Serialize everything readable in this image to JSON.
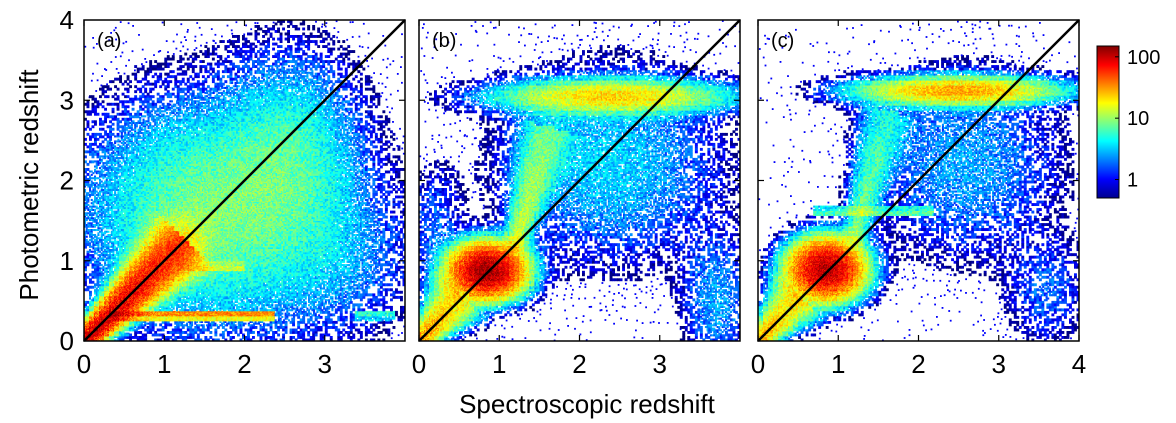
{
  "chart_data": {
    "type": "heatmap",
    "xlabel": "Spectroscopic redshift",
    "ylabel": "Photometric redshift",
    "xlim": [
      0,
      4
    ],
    "ylim": [
      0,
      4
    ],
    "colorbar": {
      "scale": "log",
      "range": [
        0.5,
        150
      ],
      "ticks": [
        {
          "value": 1,
          "label": "1"
        },
        {
          "value": 10,
          "label": "10"
        },
        {
          "value": 100,
          "label": "100"
        }
      ],
      "colormap": "jet"
    },
    "reference_line": {
      "from": [
        0,
        0
      ],
      "to": [
        4,
        4
      ]
    },
    "panels": [
      {
        "label": "(a)",
        "x_ticks": [
          "0",
          "1",
          "2",
          "3"
        ],
        "y_ticks": [
          "0",
          "1",
          "2",
          "3",
          "4"
        ],
        "dense_points": [
          [
            0.2,
            0.2
          ],
          [
            0.5,
            0.5
          ],
          [
            0.8,
            0.85
          ],
          [
            1.0,
            1.0
          ],
          [
            1.3,
            1.2
          ],
          [
            0.5,
            0.32
          ],
          [
            1.5,
            0.32
          ]
        ],
        "features": [
          {
            "type": "ridge",
            "from": [
              0.05,
              0.05
            ],
            "to": [
              1.2,
              1.2
            ],
            "peak_count": 120
          },
          {
            "type": "cloud",
            "center": [
              1.6,
              1.6
            ],
            "spread": [
              0.9,
              0.8
            ],
            "count": 10
          },
          {
            "type": "cloud",
            "center": [
              2.6,
              2.4
            ],
            "spread": [
              0.5,
              0.7
            ],
            "count": 5
          },
          {
            "type": "cloud",
            "center": [
              3.2,
              1.0
            ],
            "spread": [
              0.6,
              0.6
            ],
            "count": 2
          },
          {
            "type": "streak",
            "y": 0.32,
            "x_range": [
              0.3,
              2.4
            ],
            "count": 60
          },
          {
            "type": "streak",
            "y": 0.32,
            "x_range": [
              3.4,
              3.9
            ],
            "count": 8
          },
          {
            "type": "streak",
            "y": 0.93,
            "x_range": [
              1.2,
              2.0
            ],
            "count": 15
          }
        ]
      },
      {
        "label": "(b)",
        "x_ticks": [
          "0",
          "1",
          "2",
          "3"
        ],
        "y_ticks": [],
        "dense_points": [
          [
            0.4,
            0.6
          ],
          [
            0.7,
            0.8
          ],
          [
            0.9,
            0.95
          ],
          [
            1.1,
            1.0
          ],
          [
            2.0,
            3.0
          ],
          [
            2.5,
            3.1
          ]
        ],
        "features": [
          {
            "type": "blob",
            "center": [
              0.85,
              0.88
            ],
            "spread": [
              0.25,
              0.18
            ],
            "count": 150
          },
          {
            "type": "ridge",
            "from": [
              0.05,
              0.05
            ],
            "to": [
              0.5,
              0.55
            ],
            "peak_count": 40
          },
          {
            "type": "ridge",
            "from": [
              1.2,
              1.2
            ],
            "to": [
              1.6,
              2.6
            ],
            "peak_count": 15
          },
          {
            "type": "plateau",
            "center": [
              2.4,
              3.05
            ],
            "spread": [
              0.8,
              0.12
            ],
            "count": 25
          },
          {
            "type": "cloud",
            "center": [
              2.4,
              2.2
            ],
            "spread": [
              0.8,
              0.7
            ],
            "count": 4
          },
          {
            "type": "cloud",
            "center": [
              3.7,
              0.5
            ],
            "spread": [
              0.25,
              0.5
            ],
            "count": 3
          },
          {
            "type": "cloud",
            "center": [
              0.2,
              1.5
            ],
            "spread": [
              0.2,
              0.4
            ],
            "count": 2
          }
        ]
      },
      {
        "label": "(c)",
        "x_ticks": [
          "0",
          "1",
          "2",
          "3",
          "4"
        ],
        "y_ticks": [],
        "dense_points": [
          [
            0.5,
            0.65
          ],
          [
            0.8,
            0.85
          ],
          [
            1.0,
            0.95
          ],
          [
            2.3,
            3.1
          ],
          [
            2.8,
            3.15
          ]
        ],
        "features": [
          {
            "type": "blob",
            "center": [
              0.85,
              0.9
            ],
            "spread": [
              0.25,
              0.2
            ],
            "count": 130
          },
          {
            "type": "ridge",
            "from": [
              0.05,
              0.05
            ],
            "to": [
              0.5,
              0.55
            ],
            "peak_count": 35
          },
          {
            "type": "ridge",
            "from": [
              1.2,
              1.3
            ],
            "to": [
              1.6,
              2.8
            ],
            "peak_count": 10
          },
          {
            "type": "plateau",
            "center": [
              2.5,
              3.12
            ],
            "spread": [
              0.7,
              0.1
            ],
            "count": 35
          },
          {
            "type": "cloud",
            "center": [
              2.6,
              2.2
            ],
            "spread": [
              0.7,
              0.7
            ],
            "count": 3
          },
          {
            "type": "streak",
            "y": 1.62,
            "x_range": [
              0.7,
              2.2
            ],
            "count": 12
          },
          {
            "type": "cloud",
            "center": [
              3.6,
              0.6
            ],
            "spread": [
              0.3,
              0.4
            ],
            "count": 2
          }
        ]
      }
    ]
  }
}
